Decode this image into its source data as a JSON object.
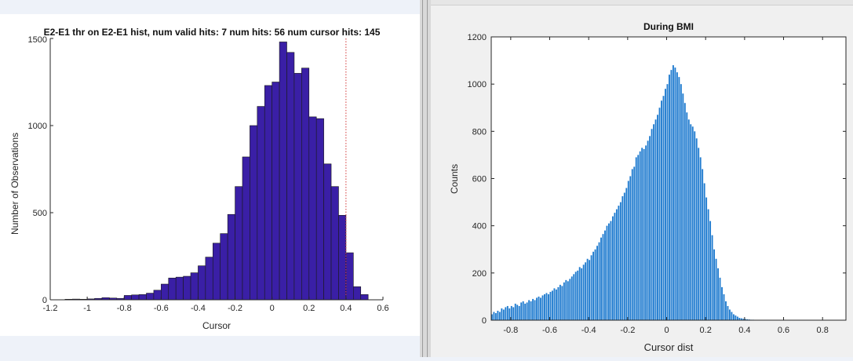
{
  "chart_data": [
    {
      "type": "bar",
      "title": "E2-E1 thr on E2-E1 hist, num valid hits: 7 num hits: 56 num cursor hits: 145",
      "xlabel": "Cursor",
      "ylabel": "Number of Observations",
      "xlim": [
        -1.2,
        0.6
      ],
      "ylim": [
        0,
        1500
      ],
      "xticks": [
        "-1.2",
        "-1",
        "-0.8",
        "-0.6",
        "-0.4",
        "-0.2",
        "0",
        "0.2",
        "0.4",
        "0.6"
      ],
      "yticks": [
        "0",
        "500",
        "1000",
        "1500"
      ],
      "threshold_x": 0.4,
      "bar_color": "#3a1fa6",
      "threshold_color": "#d23a3a",
      "bins": [
        {
          "x0": -1.12,
          "x1": -1.08,
          "value": 3
        },
        {
          "x0": -1.08,
          "x1": -1.04,
          "value": 4
        },
        {
          "x0": -1.04,
          "x1": -1.0,
          "value": 3
        },
        {
          "x0": -1.0,
          "x1": -0.96,
          "value": 5
        },
        {
          "x0": -0.96,
          "x1": -0.92,
          "value": 8
        },
        {
          "x0": -0.92,
          "x1": -0.88,
          "value": 12
        },
        {
          "x0": -0.88,
          "x1": -0.84,
          "value": 10
        },
        {
          "x0": -0.84,
          "x1": -0.8,
          "value": 8
        },
        {
          "x0": -0.8,
          "x1": -0.76,
          "value": 25
        },
        {
          "x0": -0.76,
          "x1": -0.72,
          "value": 28
        },
        {
          "x0": -0.72,
          "x1": -0.68,
          "value": 30
        },
        {
          "x0": -0.68,
          "x1": -0.64,
          "value": 38
        },
        {
          "x0": -0.64,
          "x1": -0.6,
          "value": 55
        },
        {
          "x0": -0.6,
          "x1": -0.56,
          "value": 90
        },
        {
          "x0": -0.56,
          "x1": -0.52,
          "value": 125
        },
        {
          "x0": -0.52,
          "x1": -0.48,
          "value": 130
        },
        {
          "x0": -0.48,
          "x1": -0.44,
          "value": 135
        },
        {
          "x0": -0.44,
          "x1": -0.4,
          "value": 155
        },
        {
          "x0": -0.4,
          "x1": -0.36,
          "value": 195
        },
        {
          "x0": -0.36,
          "x1": -0.32,
          "value": 245
        },
        {
          "x0": -0.32,
          "x1": -0.28,
          "value": 325
        },
        {
          "x0": -0.28,
          "x1": -0.24,
          "value": 380
        },
        {
          "x0": -0.24,
          "x1": -0.2,
          "value": 490
        },
        {
          "x0": -0.2,
          "x1": -0.16,
          "value": 650
        },
        {
          "x0": -0.16,
          "x1": -0.12,
          "value": 820
        },
        {
          "x0": -0.12,
          "x1": -0.08,
          "value": 1000
        },
        {
          "x0": -0.08,
          "x1": -0.04,
          "value": 1110
        },
        {
          "x0": -0.04,
          "x1": 0.0,
          "value": 1230
        },
        {
          "x0": 0.0,
          "x1": 0.04,
          "value": 1250
        },
        {
          "x0": 0.04,
          "x1": 0.08,
          "value": 1480
        },
        {
          "x0": 0.08,
          "x1": 0.12,
          "value": 1420
        },
        {
          "x0": 0.12,
          "x1": 0.16,
          "value": 1300
        },
        {
          "x0": 0.16,
          "x1": 0.2,
          "value": 1330
        },
        {
          "x0": 0.2,
          "x1": 0.24,
          "value": 1050
        },
        {
          "x0": 0.24,
          "x1": 0.28,
          "value": 1040
        },
        {
          "x0": 0.28,
          "x1": 0.32,
          "value": 780
        },
        {
          "x0": 0.32,
          "x1": 0.36,
          "value": 650
        },
        {
          "x0": 0.36,
          "x1": 0.4,
          "value": 485
        },
        {
          "x0": 0.4,
          "x1": 0.44,
          "value": 270
        },
        {
          "x0": 0.44,
          "x1": 0.48,
          "value": 75
        },
        {
          "x0": 0.48,
          "x1": 0.52,
          "value": 30
        }
      ]
    },
    {
      "type": "bar",
      "title": "During BMI",
      "xlabel": "Cursor dist",
      "ylabel": "Counts",
      "xlim": [
        -0.9,
        0.92
      ],
      "ylim": [
        0,
        1200
      ],
      "xticks": [
        "-0.8",
        "-0.6",
        "-0.4",
        "-0.2",
        "0",
        "0.2",
        "0.4",
        "0.6",
        "0.8"
      ],
      "yticks": [
        "0",
        "200",
        "400",
        "600",
        "800",
        "1000",
        "1200"
      ],
      "bar_color": "#1f7bcf",
      "bin_start": -0.9,
      "bin_width": 0.01,
      "values": [
        25,
        35,
        30,
        40,
        35,
        50,
        45,
        55,
        60,
        50,
        60,
        55,
        70,
        65,
        60,
        75,
        80,
        70,
        75,
        85,
        80,
        90,
        85,
        95,
        100,
        95,
        105,
        110,
        115,
        110,
        120,
        125,
        135,
        130,
        140,
        150,
        145,
        160,
        170,
        165,
        175,
        185,
        195,
        205,
        210,
        225,
        220,
        235,
        245,
        260,
        255,
        275,
        290,
        300,
        315,
        330,
        350,
        365,
        380,
        400,
        410,
        420,
        440,
        455,
        470,
        485,
        500,
        525,
        540,
        560,
        590,
        610,
        640,
        650,
        690,
        700,
        715,
        730,
        725,
        740,
        760,
        780,
        810,
        830,
        850,
        870,
        900,
        930,
        950,
        980,
        1000,
        1040,
        1060,
        1080,
        1070,
        1050,
        1030,
        1000,
        960,
        920,
        880,
        850,
        830,
        820,
        800,
        770,
        730,
        690,
        640,
        580,
        520,
        470,
        420,
        360,
        300,
        260,
        220,
        180,
        140,
        110,
        80,
        60,
        45,
        35,
        25,
        20,
        15,
        10,
        8,
        6,
        5,
        4,
        3,
        2,
        2,
        1,
        1,
        1,
        0,
        0,
        0,
        0,
        0,
        0,
        0,
        0,
        0,
        0,
        0,
        0,
        0,
        0,
        0,
        0,
        0,
        0,
        0,
        0,
        0,
        0,
        0,
        0,
        0,
        0,
        0,
        0,
        0,
        0,
        0,
        0,
        0,
        0,
        0,
        0,
        0,
        0,
        0
      ]
    }
  ]
}
